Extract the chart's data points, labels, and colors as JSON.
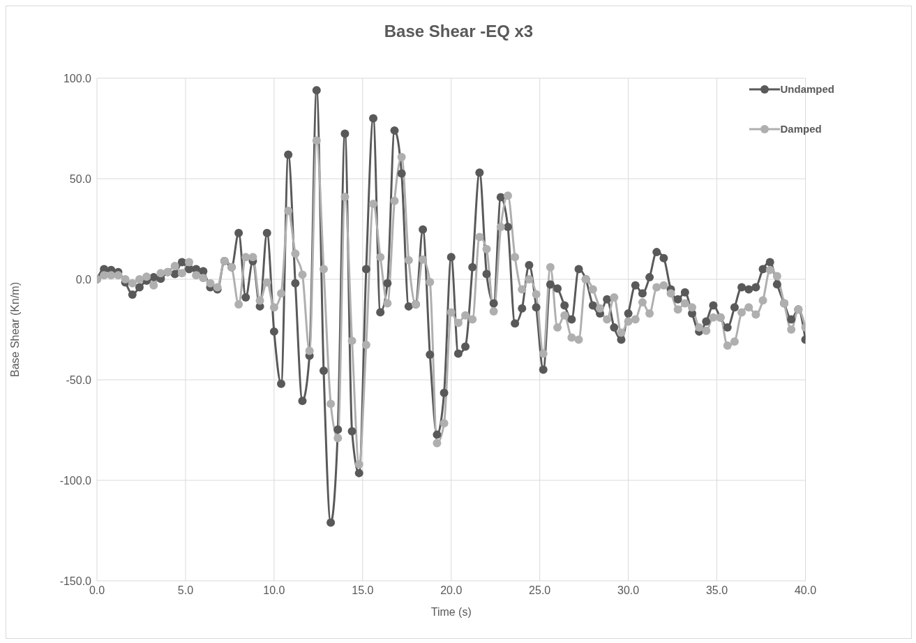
{
  "chart_data": {
    "type": "line",
    "title": "Base Shear -EQ x3",
    "xlabel": "Time (s)",
    "ylabel": "Base Shear (Kn/m)",
    "x": [
      0,
      0.4,
      0.8,
      1.2,
      1.6,
      2,
      2.4,
      2.8,
      3.2,
      3.6,
      4,
      4.4,
      4.8,
      5.2,
      5.6,
      6,
      6.4,
      6.8,
      7.2,
      7.6,
      8,
      8.4,
      8.8,
      9.2,
      9.6,
      10,
      10.4,
      10.8,
      11.2,
      11.6,
      12,
      12.4,
      12.8,
      13.2,
      13.6,
      14,
      14.4,
      14.8,
      15.2,
      15.6,
      16,
      16.4,
      16.8,
      17.2,
      17.6,
      18,
      18.4,
      18.8,
      19.2,
      19.6,
      20,
      20.4,
      20.8,
      21.2,
      21.6,
      22,
      22.4,
      22.8,
      23.2,
      23.6,
      24,
      24.4,
      24.8,
      25.2,
      25.6,
      26,
      26.4,
      26.8,
      27.2,
      27.6,
      28,
      28.4,
      28.8,
      29.2,
      29.6,
      30,
      30.4,
      30.8,
      31.2,
      31.6,
      32,
      32.4,
      32.8,
      33.2,
      33.6,
      34,
      34.4,
      34.8,
      35.2,
      35.6,
      36,
      36.4,
      36.8,
      37.2,
      37.6,
      38,
      38.4,
      38.8,
      39.2,
      39.6,
      40
    ],
    "series": [
      {
        "name": "Undamped",
        "color": "#595959",
        "values": [
          0,
          5,
          4.6,
          3.6,
          -1.6,
          -7.6,
          -4,
          -0.7,
          1,
          0.3,
          3.6,
          2.6,
          8.5,
          5,
          5,
          4,
          -4,
          -5,
          9,
          6,
          23,
          -9,
          9,
          -13.5,
          23,
          -26,
          -52,
          62,
          -2,
          -60.5,
          -38,
          94,
          -45.5,
          -121,
          -74.7,
          72.4,
          -75.6,
          -96.4,
          5,
          80,
          -16.4,
          -2,
          74,
          52.6,
          -13.5,
          -12.5,
          24.7,
          -37.5,
          -77.3,
          -56.5,
          11,
          -37,
          -33.5,
          6,
          53,
          2.6,
          -12,
          40.8,
          26,
          -22,
          -14.5,
          7,
          -14,
          -45,
          -2.6,
          -4.6,
          -13,
          -20,
          5,
          0,
          -13,
          -17,
          -10,
          -24,
          -30,
          -17,
          -3,
          -7,
          1,
          13.5,
          10.5,
          -5,
          -10,
          -6.5,
          -17,
          -26,
          -21,
          -13,
          -19,
          -24,
          -14,
          -4,
          -5,
          -4,
          5,
          8.5,
          -2.5,
          -12,
          -20,
          -15,
          -30
        ]
      },
      {
        "name": "Damped",
        "color": "#afafaf",
        "values": [
          0,
          2,
          2,
          2,
          0,
          -2,
          0,
          1.3,
          -3,
          3,
          3.6,
          6.6,
          3,
          8.5,
          2,
          0.6,
          -2,
          -4,
          9,
          6,
          -12.5,
          11,
          11,
          -10.6,
          -1.6,
          -14,
          -7,
          34,
          12.8,
          2.3,
          -35.6,
          69,
          5,
          -62,
          -79,
          41,
          -30.6,
          -92,
          -32.6,
          37.5,
          11,
          -12,
          39,
          60.8,
          9.5,
          -12.5,
          9.8,
          -1.4,
          -81.5,
          -71.6,
          -16.5,
          -21.7,
          -18,
          -20,
          21,
          15,
          -16,
          26,
          41.6,
          11,
          -5,
          0,
          -7.5,
          -37,
          6,
          -24,
          -18,
          -29,
          -30,
          0,
          -5,
          -14.5,
          -20,
          -9,
          -26.6,
          -21,
          -20,
          -11.5,
          -17,
          -4,
          -3,
          -7,
          -15,
          -12,
          -14,
          -24,
          -25.6,
          -19,
          -19,
          -33,
          -31,
          -16.5,
          -14,
          -17.5,
          -10.5,
          4.6,
          1.6,
          -12,
          -25,
          -15,
          -24
        ]
      }
    ],
    "xlim": [
      0,
      40
    ],
    "xticks": [
      {
        "value": 0,
        "label": "0.0"
      },
      {
        "value": 5,
        "label": "5.0"
      },
      {
        "value": 10,
        "label": "10.0"
      },
      {
        "value": 15,
        "label": "15.0"
      },
      {
        "value": 20,
        "label": "20.0"
      },
      {
        "value": 25,
        "label": "25.0"
      },
      {
        "value": 30,
        "label": "30.0"
      },
      {
        "value": 35,
        "label": "35.0"
      },
      {
        "value": 40,
        "label": "40.0"
      }
    ],
    "ylim": [
      -150,
      100
    ],
    "yticks": [
      {
        "value": -150,
        "label": "-150.0"
      },
      {
        "value": -100,
        "label": "-100.0"
      },
      {
        "value": -50,
        "label": "-50.0"
      },
      {
        "value": 0,
        "label": "0.0"
      },
      {
        "value": 50,
        "label": "50.0"
      },
      {
        "value": 100,
        "label": "100.0"
      }
    ],
    "grid": true,
    "legend": "top right",
    "marker": "circle",
    "line_style": "solid"
  }
}
